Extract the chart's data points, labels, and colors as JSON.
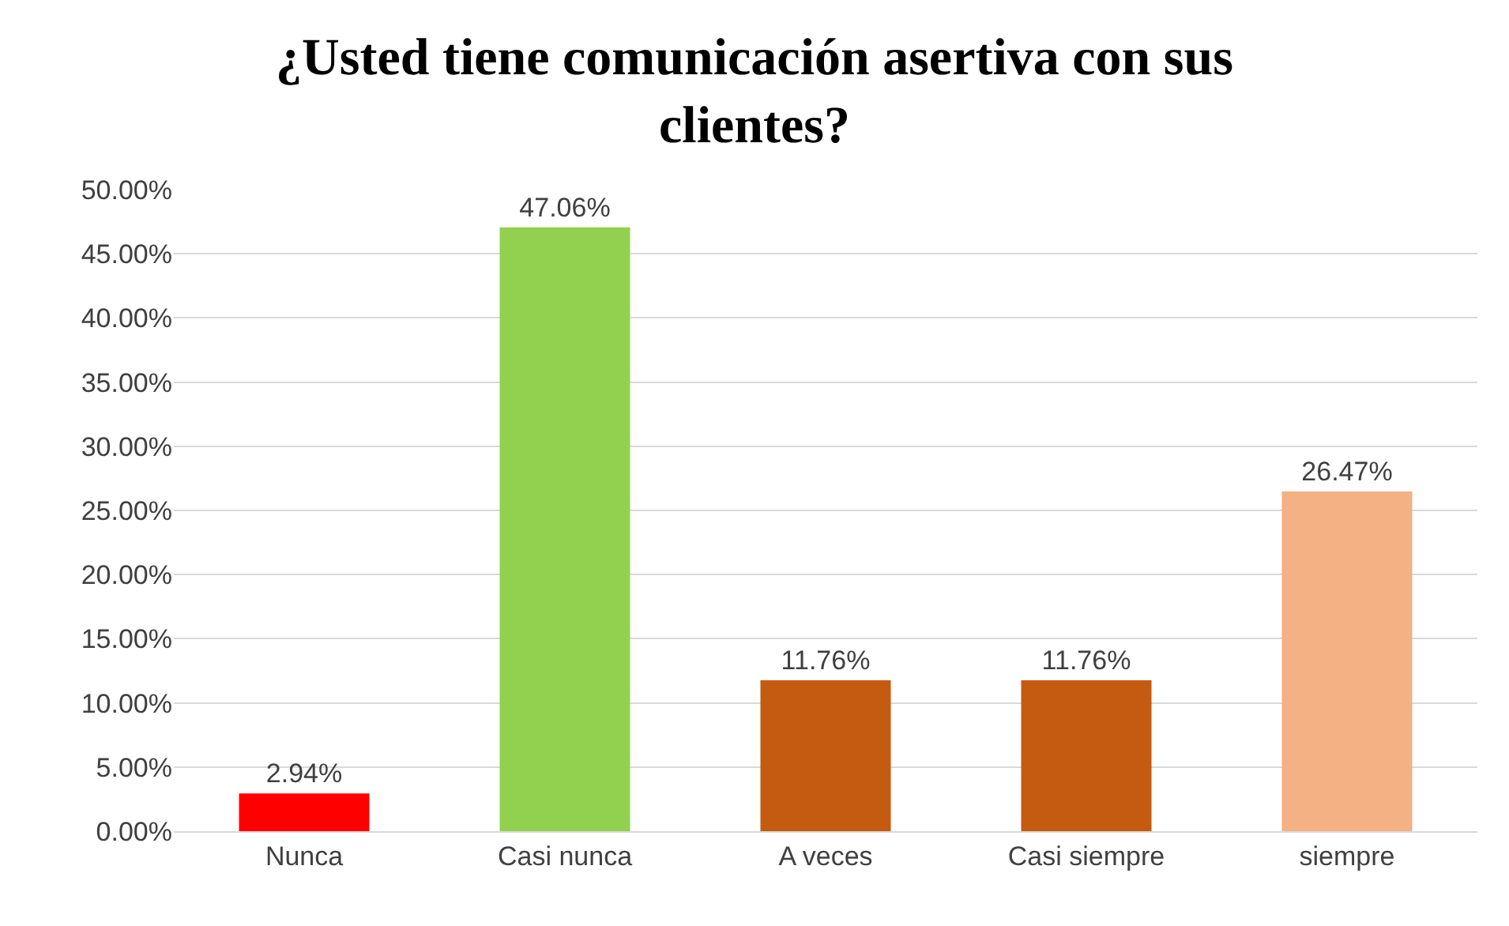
{
  "chart_data": {
    "type": "bar",
    "title": "¿Usted tiene comunicación asertiva con sus clientes?",
    "categories": [
      "Nunca",
      "Casi nunca",
      "A veces",
      "Casi siempre",
      "siempre"
    ],
    "values": [
      2.94,
      47.06,
      11.76,
      11.76,
      26.47
    ],
    "colors": [
      "#ff0000",
      "#92d050",
      "#c55a11",
      "#c55a11",
      "#f4b183"
    ],
    "value_labels": [
      "2.94%",
      "47.06%",
      "11.76%",
      "11.76%",
      "26.47%"
    ],
    "ylim": [
      0,
      50
    ],
    "yticks": [
      {
        "value": 0,
        "label": "0.00%"
      },
      {
        "value": 5,
        "label": "5.00%"
      },
      {
        "value": 10,
        "label": "10.00%"
      },
      {
        "value": 15,
        "label": "15.00%"
      },
      {
        "value": 20,
        "label": "20.00%"
      },
      {
        "value": 25,
        "label": "25.00%"
      },
      {
        "value": 30,
        "label": "30.00%"
      },
      {
        "value": 35,
        "label": "35.00%"
      },
      {
        "value": 40,
        "label": "40.00%"
      },
      {
        "value": 45,
        "label": "45.00%"
      },
      {
        "value": 50,
        "label": "50.00%"
      }
    ],
    "grid": "y",
    "legend": false
  }
}
